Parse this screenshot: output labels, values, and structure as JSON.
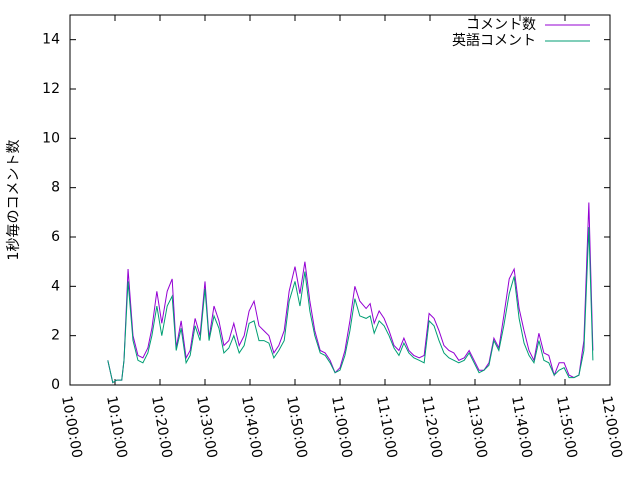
{
  "chart_data": {
    "type": "line",
    "ylabel": "1秒毎のコメント数",
    "x": [
      "10:08:24",
      "10:09:30",
      "10:10:24",
      "10:11:30",
      "10:12:00",
      "10:12:54",
      "10:14:00",
      "10:15:06",
      "10:16:12",
      "10:17:18",
      "10:18:12",
      "10:19:18",
      "10:20:24",
      "10:21:36",
      "10:22:42",
      "10:23:36",
      "10:24:42",
      "10:25:48",
      "10:26:42",
      "10:27:48",
      "10:28:54",
      "10:30:00",
      "10:30:54",
      "10:32:00",
      "10:33:06",
      "10:34:12",
      "10:35:18",
      "10:36:24",
      "10:37:36",
      "10:38:42",
      "10:39:48",
      "10:40:54",
      "10:42:00",
      "10:43:06",
      "10:44:12",
      "10:45:18",
      "10:46:24",
      "10:47:36",
      "10:48:42",
      "10:50:00",
      "10:51:06",
      "10:52:12",
      "10:53:18",
      "10:54:24",
      "10:55:36",
      "10:56:42",
      "10:57:48",
      "10:58:54",
      "11:00:00",
      "11:01:06",
      "11:02:12",
      "11:03:18",
      "11:04:24",
      "11:05:48",
      "11:06:42",
      "11:07:36",
      "11:08:42",
      "11:09:48",
      "11:10:54",
      "11:12:00",
      "11:13:06",
      "11:14:12",
      "11:15:18",
      "11:16:24",
      "11:17:36",
      "11:18:42",
      "11:19:48",
      "11:20:54",
      "11:22:00",
      "11:23:06",
      "11:24:12",
      "11:25:18",
      "11:26:24",
      "11:27:36",
      "11:28:42",
      "11:29:48",
      "11:30:54",
      "11:32:00",
      "11:33:06",
      "11:34:12",
      "11:35:18",
      "11:36:24",
      "11:37:36",
      "11:38:42",
      "11:39:48",
      "11:40:54",
      "11:42:00",
      "11:43:06",
      "11:44:12",
      "11:45:18",
      "11:46:24",
      "11:47:36",
      "11:48:42",
      "11:49:48",
      "11:50:54",
      "11:52:00",
      "11:53:06",
      "11:54:12",
      "11:55:18",
      "11:56:12"
    ],
    "series": [
      {
        "name": "コメント数",
        "color": "#9400d3",
        "values": [
          1.0,
          0.1,
          0.2,
          0.2,
          1.0,
          4.7,
          2.0,
          1.2,
          1.1,
          1.5,
          2.3,
          3.8,
          2.5,
          3.8,
          4.3,
          1.5,
          2.6,
          1.1,
          1.4,
          2.7,
          2.0,
          4.2,
          1.9,
          3.2,
          2.6,
          1.6,
          1.8,
          2.5,
          1.6,
          2.0,
          3.0,
          3.4,
          2.4,
          2.2,
          2.0,
          1.3,
          1.6,
          2.2,
          3.8,
          4.8,
          3.7,
          5.0,
          3.4,
          2.2,
          1.4,
          1.3,
          1.0,
          0.5,
          0.7,
          1.4,
          2.6,
          4.0,
          3.4,
          3.1,
          3.3,
          2.5,
          3.0,
          2.7,
          2.2,
          1.6,
          1.4,
          1.9,
          1.4,
          1.2,
          1.1,
          1.2,
          2.9,
          2.7,
          2.2,
          1.6,
          1.4,
          1.3,
          1.0,
          1.1,
          1.4,
          1.0,
          0.6,
          0.6,
          0.9,
          1.9,
          1.5,
          2.8,
          4.3,
          4.7,
          3.1,
          2.2,
          1.4,
          1.0,
          2.1,
          1.3,
          1.2,
          0.4,
          0.9,
          0.9,
          0.4,
          0.3,
          0.4,
          1.8,
          7.4,
          1.4
        ]
      },
      {
        "name": "英語コメント",
        "color": "#009e73",
        "values": [
          1.0,
          0.1,
          0.2,
          0.2,
          1.0,
          4.2,
          1.8,
          1.0,
          0.9,
          1.3,
          2.0,
          3.2,
          2.0,
          3.2,
          3.6,
          1.4,
          2.3,
          0.9,
          1.2,
          2.4,
          1.8,
          3.9,
          1.8,
          2.8,
          2.3,
          1.3,
          1.5,
          2.0,
          1.3,
          1.6,
          2.5,
          2.6,
          1.8,
          1.8,
          1.7,
          1.1,
          1.4,
          1.8,
          3.4,
          4.2,
          3.2,
          4.6,
          3.0,
          2.0,
          1.3,
          1.2,
          0.9,
          0.5,
          0.6,
          1.2,
          2.2,
          3.5,
          2.8,
          2.7,
          2.8,
          2.1,
          2.6,
          2.4,
          2.0,
          1.5,
          1.2,
          1.7,
          1.3,
          1.1,
          1.0,
          0.9,
          2.6,
          2.4,
          1.8,
          1.3,
          1.1,
          1.0,
          0.9,
          1.0,
          1.3,
          0.9,
          0.5,
          0.6,
          0.8,
          1.8,
          1.4,
          2.4,
          3.7,
          4.4,
          2.7,
          1.7,
          1.2,
          0.9,
          1.8,
          1.0,
          0.9,
          0.4,
          0.6,
          0.7,
          0.3,
          0.3,
          0.4,
          1.4,
          6.4,
          1.0
        ]
      }
    ],
    "xlim": [
      "10:00:00",
      "12:00:00"
    ],
    "xticks": [
      "10:00:00",
      "10:10:00",
      "10:20:00",
      "10:30:00",
      "10:40:00",
      "10:50:00",
      "11:00:00",
      "11:10:00",
      "11:20:00",
      "11:30:00",
      "11:40:00",
      "11:50:00",
      "12:00:00"
    ],
    "ylim": [
      0,
      15
    ],
    "yticks": [
      0,
      2,
      4,
      6,
      8,
      10,
      12,
      14
    ],
    "grid": false,
    "legend": "top-right"
  }
}
